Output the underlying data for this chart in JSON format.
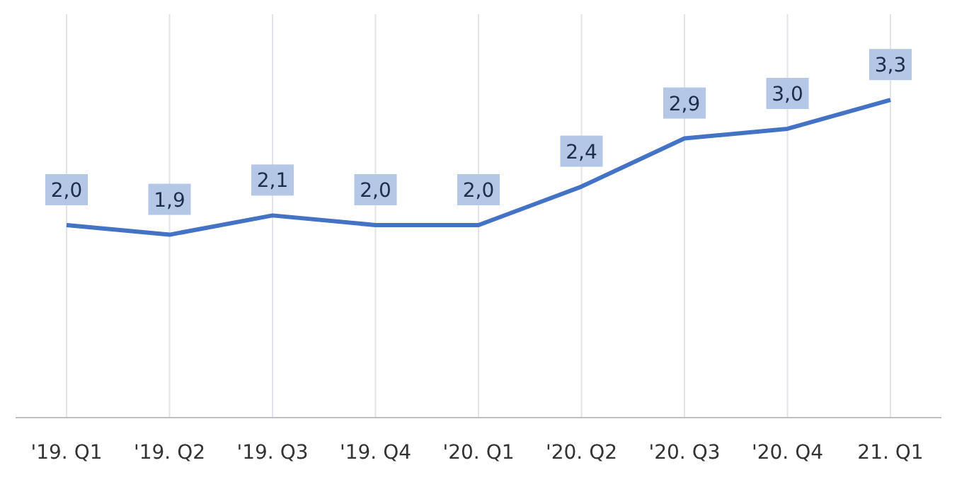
{
  "chart_data": {
    "type": "line",
    "categories": [
      "'19. Q1",
      "'19. Q2",
      "'19. Q3",
      "'19. Q4",
      "'20. Q1",
      "'20. Q2",
      "'20. Q3",
      "'20. Q4",
      "21. Q1"
    ],
    "series": [
      {
        "color": "#4472c4",
        "values": [
          2.0,
          1.9,
          2.1,
          2.0,
          2.0,
          2.4,
          2.9,
          3.0,
          3.3
        ],
        "value_labels": [
          "2,0",
          "1,9",
          "2,1",
          "2,0",
          "2,0",
          "2,4",
          "2,9",
          "3,0",
          "3,3"
        ]
      }
    ],
    "grid": "x",
    "tick_labels": "x",
    "marker": "none"
  }
}
